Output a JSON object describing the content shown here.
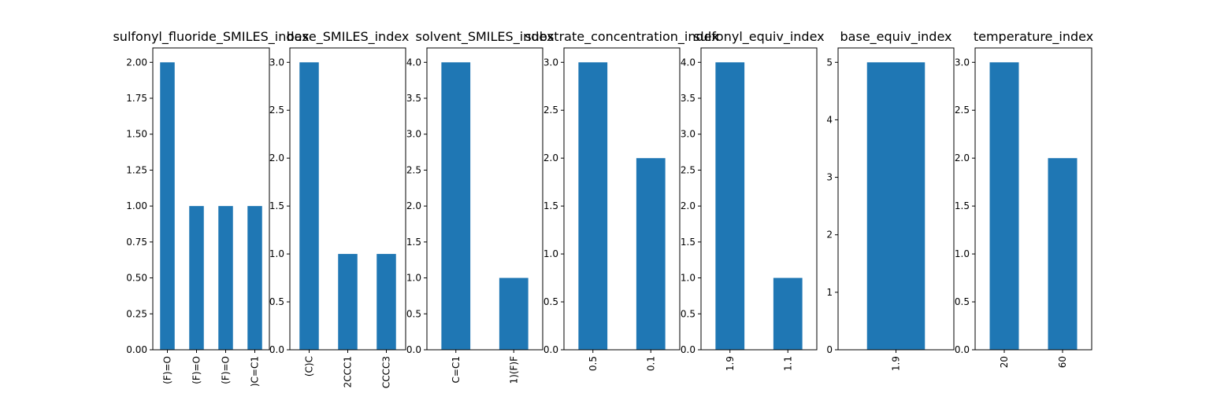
{
  "bar_color": "#1f77b4",
  "chart_data": [
    {
      "type": "bar",
      "title": "sulfonyl_fluoride_SMILES_index",
      "categories": [
        "(F)=O",
        "(F)=O",
        "(F)=O",
        ")C=C1"
      ],
      "values": [
        2,
        1,
        1,
        1
      ],
      "ylim": [
        0,
        2.1
      ],
      "yticks": [
        "0.00",
        "0.25",
        "0.50",
        "0.75",
        "1.00",
        "1.25",
        "1.50",
        "1.75",
        "2.00"
      ]
    },
    {
      "type": "bar",
      "title": "base_SMILES_index",
      "categories": [
        "(C)C",
        "2CCC1",
        "CCCC3"
      ],
      "values": [
        3,
        1,
        1
      ],
      "ylim": [
        0,
        3.15
      ],
      "yticks": [
        "0.0",
        "0.5",
        "1.0",
        "1.5",
        "2.0",
        "2.5",
        "3.0"
      ]
    },
    {
      "type": "bar",
      "title": "solvent_SMILES_index",
      "categories": [
        "C=C1",
        "1)(F)F"
      ],
      "values": [
        4,
        1
      ],
      "ylim": [
        0,
        4.2
      ],
      "yticks": [
        "0.0",
        "0.5",
        "1.0",
        "1.5",
        "2.0",
        "2.5",
        "3.0",
        "3.5",
        "4.0"
      ]
    },
    {
      "type": "bar",
      "title": "substrate_concentration_index",
      "categories": [
        "0.5",
        "0.1"
      ],
      "values": [
        3,
        2
      ],
      "ylim": [
        0,
        3.15
      ],
      "yticks": [
        "0.0",
        "0.5",
        "1.0",
        "1.5",
        "2.0",
        "2.5",
        "3.0"
      ]
    },
    {
      "type": "bar",
      "title": "sulfonyl_equiv_index",
      "categories": [
        "1.9",
        "1.1"
      ],
      "values": [
        4,
        1
      ],
      "ylim": [
        0,
        4.2
      ],
      "yticks": [
        "0.0",
        "0.5",
        "1.0",
        "1.5",
        "2.0",
        "2.5",
        "3.0",
        "3.5",
        "4.0"
      ]
    },
    {
      "type": "bar",
      "title": "base_equiv_index",
      "categories": [
        "1.9"
      ],
      "values": [
        5
      ],
      "ylim": [
        0,
        5.25
      ],
      "yticks": [
        "0",
        "1",
        "2",
        "3",
        "4",
        "5"
      ]
    },
    {
      "type": "bar",
      "title": "temperature_index",
      "categories": [
        "20",
        "60"
      ],
      "values": [
        3,
        2
      ],
      "ylim": [
        0,
        3.15
      ],
      "yticks": [
        "0.0",
        "0.5",
        "1.0",
        "1.5",
        "2.0",
        "2.5",
        "3.0"
      ]
    }
  ]
}
